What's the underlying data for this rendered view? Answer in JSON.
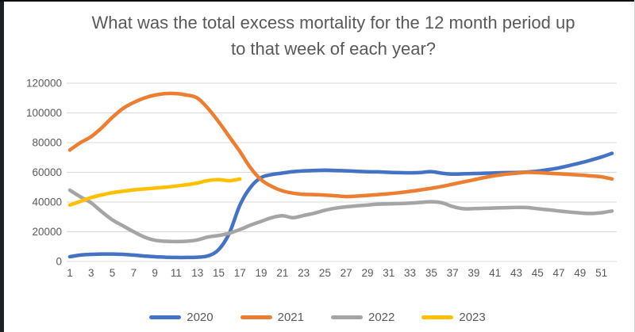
{
  "title": {
    "text": "What was the total excess mortality for the 12 month period up to that week of each year?"
  },
  "colors": {
    "title_text": "#595959",
    "axis_text": "#595959",
    "gridline": "#d9d9d9",
    "background": "#ffffff",
    "frame_left": "#1d2126"
  },
  "chart_data": {
    "type": "line",
    "title": "What was the total excess mortality for the 12 month period up to that week of each year?",
    "xlabel": "",
    "ylabel": "",
    "xlim": [
      1,
      52
    ],
    "ylim": [
      0,
      120000
    ],
    "y_ticks": [
      0,
      20000,
      40000,
      60000,
      80000,
      100000,
      120000
    ],
    "x_ticks": [
      1,
      3,
      5,
      7,
      9,
      11,
      13,
      15,
      17,
      19,
      21,
      23,
      25,
      27,
      29,
      31,
      33,
      35,
      37,
      39,
      41,
      43,
      45,
      47,
      49,
      51
    ],
    "grid": true,
    "legend_position": "bottom",
    "x": [
      1,
      2,
      3,
      4,
      5,
      6,
      7,
      8,
      9,
      10,
      11,
      12,
      13,
      14,
      15,
      16,
      17,
      18,
      19,
      20,
      21,
      22,
      23,
      24,
      25,
      26,
      27,
      28,
      29,
      30,
      31,
      32,
      33,
      34,
      35,
      36,
      37,
      38,
      39,
      40,
      41,
      42,
      43,
      44,
      45,
      46,
      47,
      48,
      49,
      50,
      51,
      52
    ],
    "series": [
      {
        "name": "2020",
        "color": "#4472C4",
        "values": [
          3200,
          4300,
          4800,
          5000,
          5000,
          4800,
          4300,
          3700,
          3200,
          2900,
          2700,
          2700,
          2900,
          3800,
          8000,
          19000,
          38000,
          50000,
          56500,
          58500,
          59500,
          60500,
          61000,
          61300,
          61500,
          61300,
          61000,
          60700,
          60400,
          60300,
          60000,
          59800,
          59700,
          59900,
          60500,
          59400,
          58800,
          59000,
          59200,
          59400,
          59600,
          59800,
          59900,
          60200,
          60800,
          61800,
          63000,
          64600,
          66300,
          68200,
          70300,
          72800
        ]
      },
      {
        "name": "2021",
        "color": "#ED7D31",
        "values": [
          75000,
          80000,
          84000,
          90000,
          97000,
          103000,
          107000,
          110000,
          112000,
          113000,
          113000,
          112000,
          110000,
          103000,
          94000,
          84000,
          74000,
          63000,
          55000,
          50500,
          47500,
          46000,
          45200,
          45000,
          44700,
          44200,
          43700,
          44000,
          44500,
          45000,
          45600,
          46300,
          47200,
          48200,
          49300,
          50500,
          52000,
          53500,
          55000,
          56500,
          57800,
          58800,
          59400,
          60000,
          59800,
          59400,
          59000,
          58600,
          58200,
          57600,
          57000,
          55500
        ]
      },
      {
        "name": "2022",
        "color": "#A5A5A5",
        "values": [
          48000,
          43500,
          39500,
          33500,
          28000,
          24000,
          20000,
          16500,
          14300,
          13600,
          13400,
          13600,
          14500,
          16500,
          17500,
          19000,
          21500,
          24500,
          27000,
          29500,
          30800,
          29500,
          31000,
          32500,
          34500,
          35900,
          36800,
          37500,
          38000,
          38600,
          38800,
          39000,
          39300,
          39800,
          40200,
          39500,
          37000,
          35500,
          35600,
          35800,
          36000,
          36200,
          36400,
          36300,
          35500,
          34800,
          34000,
          33300,
          32700,
          32300,
          32800,
          34000
        ]
      },
      {
        "name": "2023",
        "color": "#FFC000",
        "values": [
          38000,
          40500,
          43000,
          44800,
          46300,
          47300,
          48200,
          48800,
          49400,
          50000,
          50800,
          51700,
          52800,
          54500,
          55100,
          54400,
          55500
        ]
      }
    ]
  }
}
